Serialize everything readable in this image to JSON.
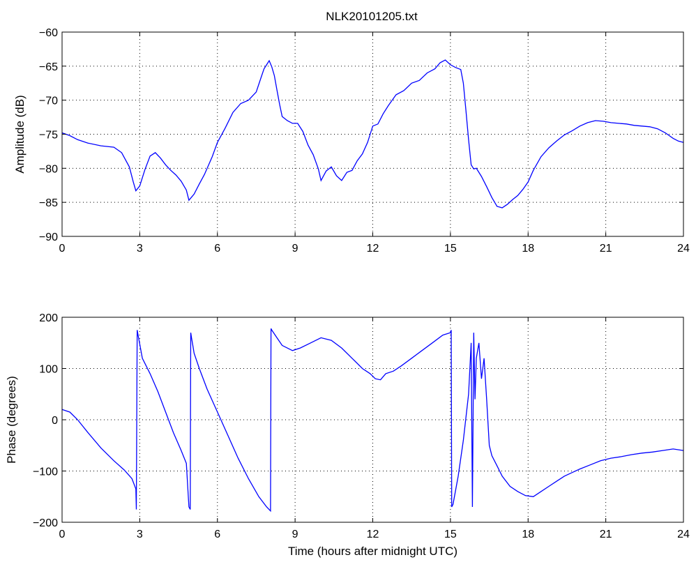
{
  "title": "NLK20101205.txt",
  "colors": {
    "line": "#0000ff",
    "axis": "#000000",
    "grid": "#000000",
    "background": "#ffffff"
  },
  "chart_data": [
    {
      "type": "line",
      "title": "NLK20101205.txt",
      "xlabel": "",
      "ylabel": "Amplitude (dB)",
      "xlim": [
        0,
        24
      ],
      "ylim": [
        -90,
        -60
      ],
      "xticks": [
        "0",
        "3",
        "6",
        "9",
        "12",
        "15",
        "18",
        "21",
        "24"
      ],
      "yticks": [
        "-90",
        "-85",
        "-80",
        "-75",
        "-70",
        "-65",
        "-60"
      ],
      "grid": true,
      "series": [
        {
          "x": [
            0,
            0.3,
            0.6,
            1.0,
            1.5,
            2.0,
            2.3,
            2.6,
            2.75,
            2.85,
            3.0,
            3.2,
            3.4,
            3.6,
            3.8,
            4.0,
            4.2,
            4.4,
            4.6,
            4.8,
            4.9,
            5.1,
            5.3,
            5.5,
            5.8,
            6.0,
            6.3,
            6.6,
            6.9,
            7.2,
            7.5,
            7.7,
            7.8,
            7.9,
            8.0,
            8.1,
            8.2,
            8.3,
            8.4,
            8.5,
            8.7,
            8.9,
            9.1,
            9.3,
            9.5,
            9.7,
            9.9,
            10.0,
            10.2,
            10.4,
            10.6,
            10.8,
            11.0,
            11.2,
            11.4,
            11.6,
            11.8,
            12.0,
            12.2,
            12.4,
            12.6,
            12.9,
            13.2,
            13.5,
            13.8,
            14.1,
            14.4,
            14.6,
            14.8,
            15.0,
            15.2,
            15.4,
            15.5,
            15.6,
            15.7,
            15.8,
            15.9,
            16.0,
            16.2,
            16.4,
            16.6,
            16.8,
            17.0,
            17.2,
            17.4,
            17.6,
            17.8,
            18.0,
            18.2,
            18.5,
            18.8,
            19.1,
            19.4,
            19.7,
            20.0,
            20.3,
            20.6,
            20.9,
            21.2,
            21.5,
            21.8,
            22.1,
            22.4,
            22.7,
            23.0,
            23.3,
            23.6,
            23.8,
            24.0
          ],
          "y": [
            -74.8,
            -75.2,
            -75.8,
            -76.3,
            -76.7,
            -76.9,
            -77.7,
            -79.8,
            -82.0,
            -83.3,
            -82.6,
            -80.2,
            -78.2,
            -77.7,
            -78.5,
            -79.5,
            -80.3,
            -81.0,
            -81.9,
            -83.2,
            -84.7,
            -83.8,
            -82.3,
            -80.9,
            -78.3,
            -76.2,
            -74.1,
            -71.8,
            -70.5,
            -70.0,
            -68.8,
            -66.5,
            -65.4,
            -64.8,
            -64.2,
            -65.1,
            -66.4,
            -68.5,
            -70.6,
            -72.4,
            -73.0,
            -73.4,
            -73.4,
            -74.6,
            -76.6,
            -78.0,
            -80.1,
            -81.8,
            -80.4,
            -79.8,
            -81.1,
            -81.8,
            -80.6,
            -80.3,
            -78.9,
            -77.9,
            -76.2,
            -73.8,
            -73.5,
            -72.0,
            -70.8,
            -69.2,
            -68.6,
            -67.5,
            -67.1,
            -66.0,
            -65.4,
            -64.5,
            -64.1,
            -64.8,
            -65.2,
            -65.5,
            -67.5,
            -71.5,
            -75.8,
            -79.5,
            -80.1,
            -80.0,
            -81.2,
            -82.7,
            -84.3,
            -85.6,
            -85.8,
            -85.3,
            -84.6,
            -84.0,
            -83.1,
            -82.0,
            -80.3,
            -78.3,
            -77.0,
            -76.0,
            -75.1,
            -74.5,
            -73.8,
            -73.3,
            -73.0,
            -73.1,
            -73.3,
            -73.4,
            -73.5,
            -73.7,
            -73.8,
            -73.9,
            -74.2,
            -74.8,
            -75.6,
            -76.0,
            -76.2
          ]
        }
      ]
    },
    {
      "type": "line",
      "title": "",
      "xlabel": "Time (hours after midnight UTC)",
      "ylabel": "Phase (degrees)",
      "xlim": [
        0,
        24
      ],
      "ylim": [
        -200,
        200
      ],
      "xticks": [
        "0",
        "3",
        "6",
        "9",
        "12",
        "15",
        "18",
        "21",
        "24"
      ],
      "yticks": [
        "-200",
        "-100",
        "0",
        "100",
        "200"
      ],
      "grid": true,
      "series": [
        {
          "x": [
            0,
            0.3,
            0.6,
            1.0,
            1.5,
            2.0,
            2.4,
            2.7,
            2.85,
            2.87,
            2.9,
            3.1,
            3.4,
            3.7,
            4.0,
            4.3,
            4.6,
            4.8,
            4.9,
            4.95,
            4.97,
            5.0,
            5.05,
            5.1,
            5.3,
            5.6,
            6.0,
            6.4,
            6.8,
            7.2,
            7.6,
            7.9,
            8.05,
            8.07,
            8.1,
            8.3,
            8.5,
            8.9,
            9.2,
            9.6,
            10.0,
            10.4,
            10.8,
            11.2,
            11.6,
            11.9,
            12.1,
            12.3,
            12.5,
            12.8,
            13.1,
            13.5,
            13.9,
            14.3,
            14.7,
            15.0,
            15.03,
            15.05,
            15.1,
            15.3,
            15.5,
            15.7,
            15.8,
            15.85,
            15.9,
            15.95,
            16.0,
            16.1,
            16.2,
            16.3,
            16.4,
            16.5,
            16.6,
            16.8,
            17.0,
            17.3,
            17.6,
            17.9,
            18.2,
            18.5,
            18.8,
            19.1,
            19.4,
            19.7,
            20.0,
            20.4,
            20.8,
            21.2,
            21.6,
            22.0,
            22.4,
            22.8,
            23.2,
            23.6,
            24.0
          ],
          "y": [
            20,
            15,
            0,
            -25,
            -55,
            -80,
            -98,
            -115,
            -135,
            -175,
            175,
            120,
            90,
            55,
            15,
            -25,
            -60,
            -85,
            -170,
            -175,
            170,
            160,
            145,
            130,
            100,
            60,
            15,
            -30,
            -75,
            -115,
            -150,
            -170,
            -178,
            178,
            175,
            160,
            145,
            135,
            140,
            150,
            160,
            155,
            140,
            120,
            100,
            90,
            80,
            78,
            90,
            95,
            105,
            120,
            135,
            150,
            165,
            170,
            175,
            -170,
            -165,
            -110,
            -40,
            50,
            150,
            -170,
            170,
            40,
            120,
            150,
            80,
            120,
            40,
            -50,
            -70,
            -90,
            -110,
            -130,
            -140,
            -148,
            -150,
            -140,
            -130,
            -120,
            -110,
            -103,
            -96,
            -88,
            -80,
            -75,
            -72,
            -68,
            -65,
            -63,
            -60,
            -57,
            -60
          ]
        }
      ]
    }
  ]
}
